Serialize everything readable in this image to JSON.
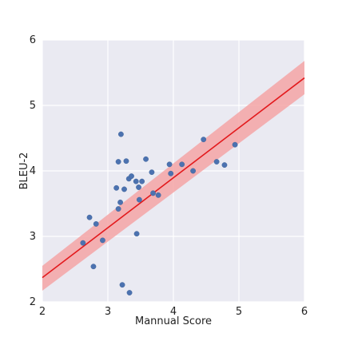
{
  "chart_data": {
    "type": "scatter",
    "title": "",
    "xlabel": "Mannual Score",
    "ylabel": "BLEU-2",
    "xlim": [
      2,
      6
    ],
    "ylim": [
      2,
      6
    ],
    "xticks": [
      "2",
      "3",
      "4",
      "5",
      "6"
    ],
    "yticks": [
      "2",
      "3",
      "4",
      "5",
      "6"
    ],
    "grid": true,
    "points": [
      [
        2.62,
        2.9
      ],
      [
        2.72,
        3.29
      ],
      [
        2.78,
        2.54
      ],
      [
        2.82,
        3.19
      ],
      [
        2.92,
        2.94
      ],
      [
        3.13,
        3.74
      ],
      [
        3.16,
        4.14
      ],
      [
        3.16,
        3.42
      ],
      [
        3.19,
        3.52
      ],
      [
        3.2,
        4.56
      ],
      [
        3.22,
        2.26
      ],
      [
        3.25,
        3.72
      ],
      [
        3.28,
        4.15
      ],
      [
        3.32,
        3.88
      ],
      [
        3.33,
        2.14
      ],
      [
        3.36,
        3.92
      ],
      [
        3.43,
        3.84
      ],
      [
        3.44,
        3.04
      ],
      [
        3.47,
        3.75
      ],
      [
        3.48,
        3.56
      ],
      [
        3.52,
        3.84
      ],
      [
        3.58,
        4.18
      ],
      [
        3.67,
        3.98
      ],
      [
        3.69,
        3.66
      ],
      [
        3.77,
        3.63
      ],
      [
        3.94,
        4.1
      ],
      [
        3.96,
        3.96
      ],
      [
        4.13,
        4.1
      ],
      [
        4.3,
        4.0
      ],
      [
        4.46,
        4.48
      ],
      [
        4.66,
        4.14
      ],
      [
        4.78,
        4.09
      ],
      [
        4.94,
        4.4
      ]
    ],
    "regression": {
      "x": [
        2,
        6
      ],
      "y": [
        2.37,
        5.42
      ],
      "ci_lower": [
        2.17,
        5.17
      ],
      "ci_upper": [
        2.55,
        5.68
      ]
    },
    "colors": {
      "background": "#eaeaf2",
      "grid": "#ffffff",
      "points": "#4c72b0",
      "line": "#e3191c",
      "band": "#f4a4a6"
    }
  }
}
